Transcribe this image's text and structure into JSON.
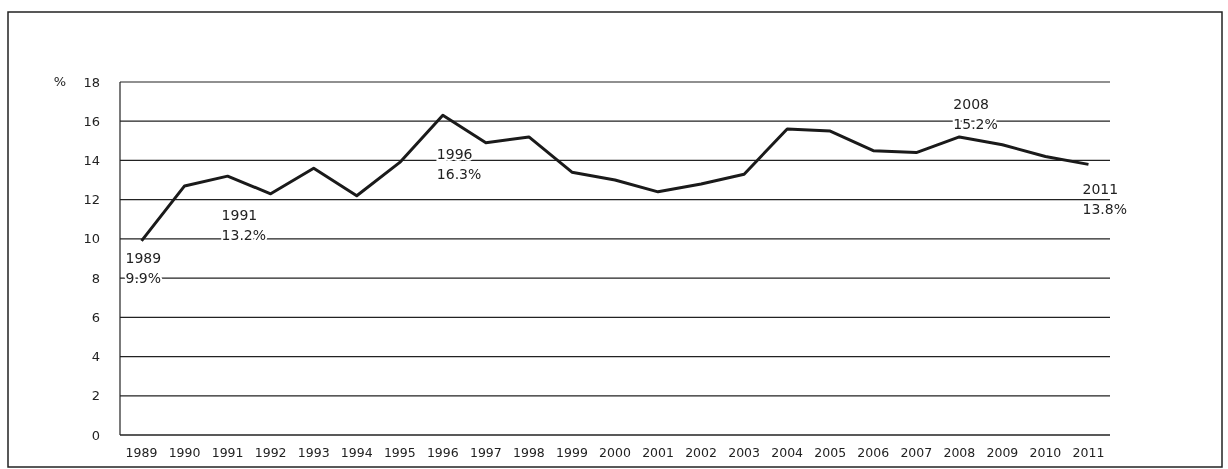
{
  "chart_data": {
    "type": "line",
    "ylabel": "%",
    "categories": [
      "1989",
      "1990",
      "1991",
      "1992",
      "1993",
      "1994",
      "1995",
      "1996",
      "1997",
      "1998",
      "1999",
      "2000",
      "2001",
      "2002",
      "2003",
      "2004",
      "2005",
      "2006",
      "2007",
      "2008",
      "2009",
      "2010",
      "2011"
    ],
    "series": [
      {
        "color": "#1a1a1a",
        "values": [
          9.9,
          12.7,
          13.2,
          12.3,
          13.6,
          12.2,
          13.9,
          16.3,
          14.9,
          15.2,
          13.4,
          13.0,
          12.4,
          12.8,
          13.3,
          15.6,
          15.5,
          14.5,
          14.4,
          15.2,
          14.8,
          14.2,
          13.8
        ]
      }
    ],
    "ylim": [
      0,
      18
    ],
    "yticks": [
      0,
      2,
      4,
      6,
      8,
      10,
      12,
      14,
      16,
      18
    ],
    "grid": "y",
    "marker": "none",
    "line_style": "solid",
    "annotations": [
      {
        "text": "1989\n9.9%",
        "x": "1989",
        "y": 9.9
      },
      {
        "text": "1991\n13.2%",
        "x": "1991",
        "y": 13.2
      },
      {
        "text": "1996\n16.3%",
        "x": "1996",
        "y": 16.3
      },
      {
        "text": "2008\n15.2%",
        "x": "2008",
        "y": 15.2
      },
      {
        "text": "2011\n13.8%",
        "x": "2011",
        "y": 13.8
      }
    ]
  }
}
